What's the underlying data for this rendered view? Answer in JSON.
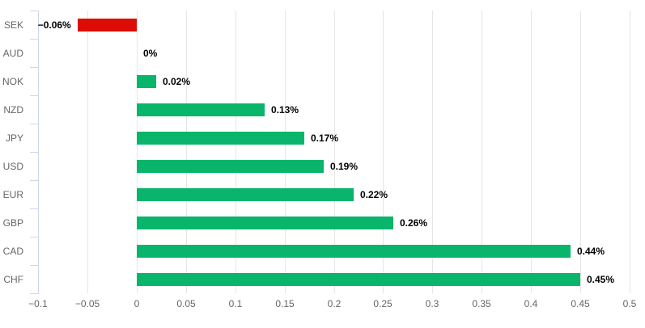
{
  "chart_data": {
    "type": "bar",
    "orientation": "horizontal",
    "title": "",
    "xlabel": "",
    "ylabel": "",
    "legend": false,
    "grid": true,
    "categories": [
      "SEK",
      "AUD",
      "NOK",
      "NZD",
      "JPY",
      "USD",
      "EUR",
      "GBP",
      "CAD",
      "CHF"
    ],
    "values": [
      -0.06,
      0,
      0.02,
      0.13,
      0.17,
      0.19,
      0.22,
      0.26,
      0.44,
      0.45
    ],
    "data_labels": [
      "−0.06%",
      "0%",
      "0.02%",
      "0.13%",
      "0.17%",
      "0.19%",
      "0.22%",
      "0.26%",
      "0.44%",
      "0.45%"
    ],
    "xlim": [
      -0.1,
      0.5
    ],
    "x_ticks": [
      -0.1,
      -0.05,
      0,
      0.05,
      0.1,
      0.15,
      0.2,
      0.25,
      0.3,
      0.35,
      0.4,
      0.45,
      0.5
    ],
    "x_tick_labels": [
      "−0.1",
      "−0.05",
      "0",
      "0.05",
      "0.1",
      "0.15",
      "0.2",
      "0.25",
      "0.3",
      "0.35",
      "0.4",
      "0.45",
      "0.5"
    ],
    "colors": {
      "positive_bar": "#08b56a",
      "negative_bar": "#dd0d05",
      "gridline": "#e6e6e6",
      "axis_line": "#ccd6eb",
      "axis_label": "#666666",
      "data_label": "#000000",
      "background": "#ffffff"
    }
  }
}
